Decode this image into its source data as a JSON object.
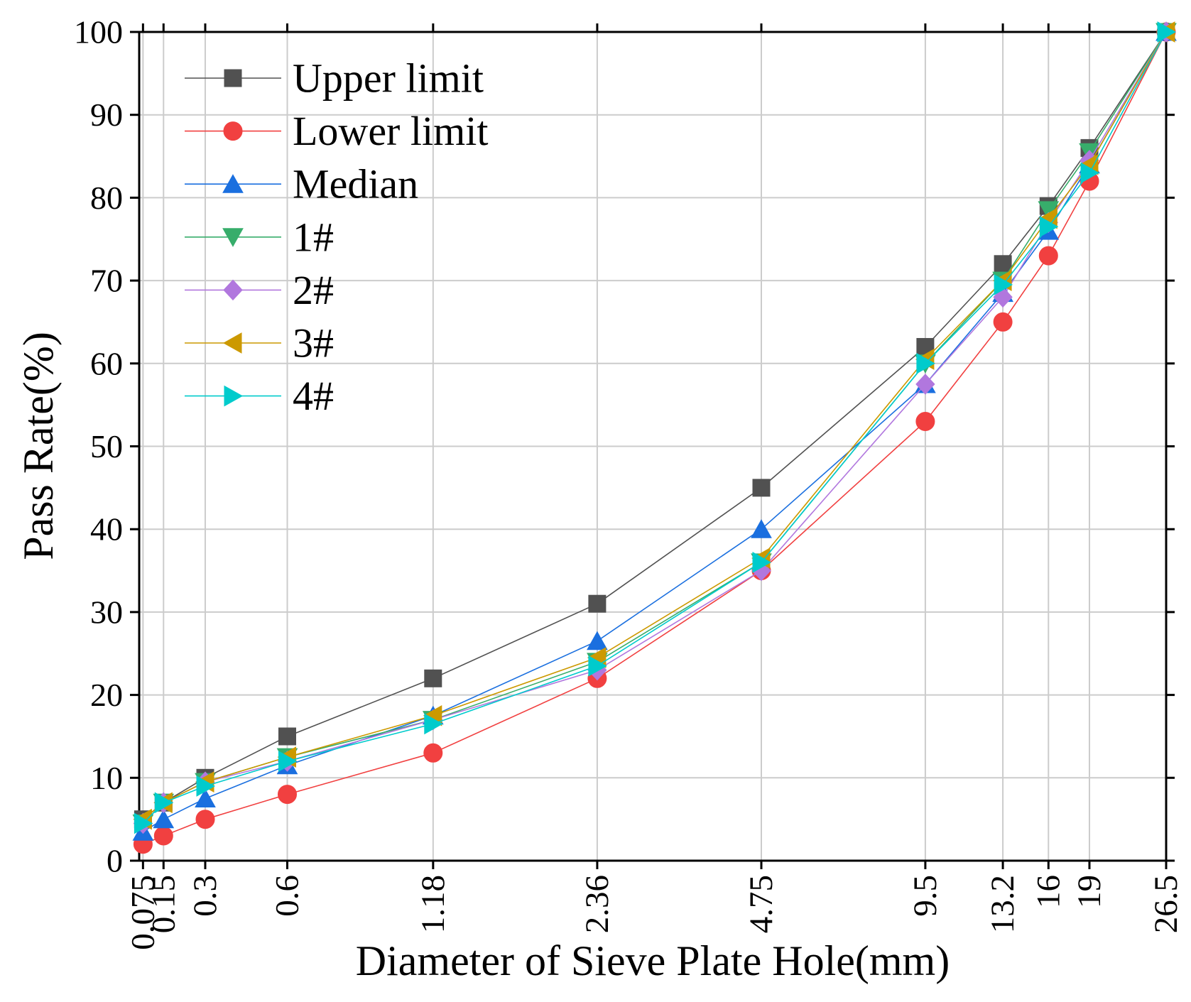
{
  "chart_data": {
    "type": "line",
    "xlabel": "Diameter of Sieve Plate Hole(mm)",
    "ylabel": "Pass Rate(%)",
    "x": [
      0.075,
      0.15,
      0.3,
      0.6,
      1.18,
      2.36,
      4.75,
      9.5,
      13.2,
      16,
      19,
      26.5
    ],
    "x_tick_labels": [
      "0.075",
      "0.15",
      "0.3",
      "0.6",
      "1.18",
      "2.36",
      "4.75",
      "9.5",
      "13.2",
      "16",
      "19",
      "26.5"
    ],
    "ylim": [
      0,
      100
    ],
    "y_ticks": [
      0,
      10,
      20,
      30,
      40,
      50,
      60,
      70,
      80,
      90,
      100
    ],
    "y_tick_labels": [
      "0",
      "10",
      "20",
      "30",
      "40",
      "50",
      "60",
      "70",
      "80",
      "90",
      "100"
    ],
    "grid": true,
    "legend_position": "top-left",
    "axis_color": "#000000",
    "grid_color": "#CCCCCC",
    "series": [
      {
        "name": "Upper limit",
        "marker": "square",
        "color": "#515151",
        "values": [
          5,
          7,
          10,
          15,
          22,
          31,
          45,
          62,
          72,
          79,
          86,
          100
        ]
      },
      {
        "name": "Lower limit",
        "marker": "circle",
        "color": "#F14040",
        "values": [
          2,
          3,
          5,
          8,
          13,
          22,
          35,
          53,
          65,
          73,
          82,
          100
        ]
      },
      {
        "name": "Median",
        "marker": "triangle-up",
        "color": "#1A6FDF",
        "values": [
          3.5,
          5,
          7.5,
          11.5,
          17.5,
          26.5,
          40,
          57.5,
          68.5,
          76,
          84,
          100
        ]
      },
      {
        "name": "1#",
        "marker": "triangle-down",
        "color": "#37AD6B",
        "values": [
          4.5,
          7,
          9.5,
          12.5,
          17,
          24,
          36,
          60,
          70,
          78.5,
          85.5,
          100
        ]
      },
      {
        "name": "2#",
        "marker": "diamond",
        "color": "#B177DE",
        "values": [
          4.5,
          7,
          9.5,
          12,
          17,
          23,
          35,
          57.5,
          68,
          77,
          84.5,
          100
        ]
      },
      {
        "name": "3#",
        "marker": "triangle-left",
        "color": "#CC9900",
        "values": [
          5,
          7,
          9.5,
          12.5,
          17.5,
          24.5,
          36.5,
          60.5,
          70,
          77.5,
          84,
          100
        ]
      },
      {
        "name": "4#",
        "marker": "triangle-right",
        "color": "#00CBCC",
        "values": [
          4.5,
          7,
          9,
          12,
          16.5,
          23.5,
          36,
          60,
          69.5,
          76.5,
          83,
          100
        ]
      }
    ]
  }
}
